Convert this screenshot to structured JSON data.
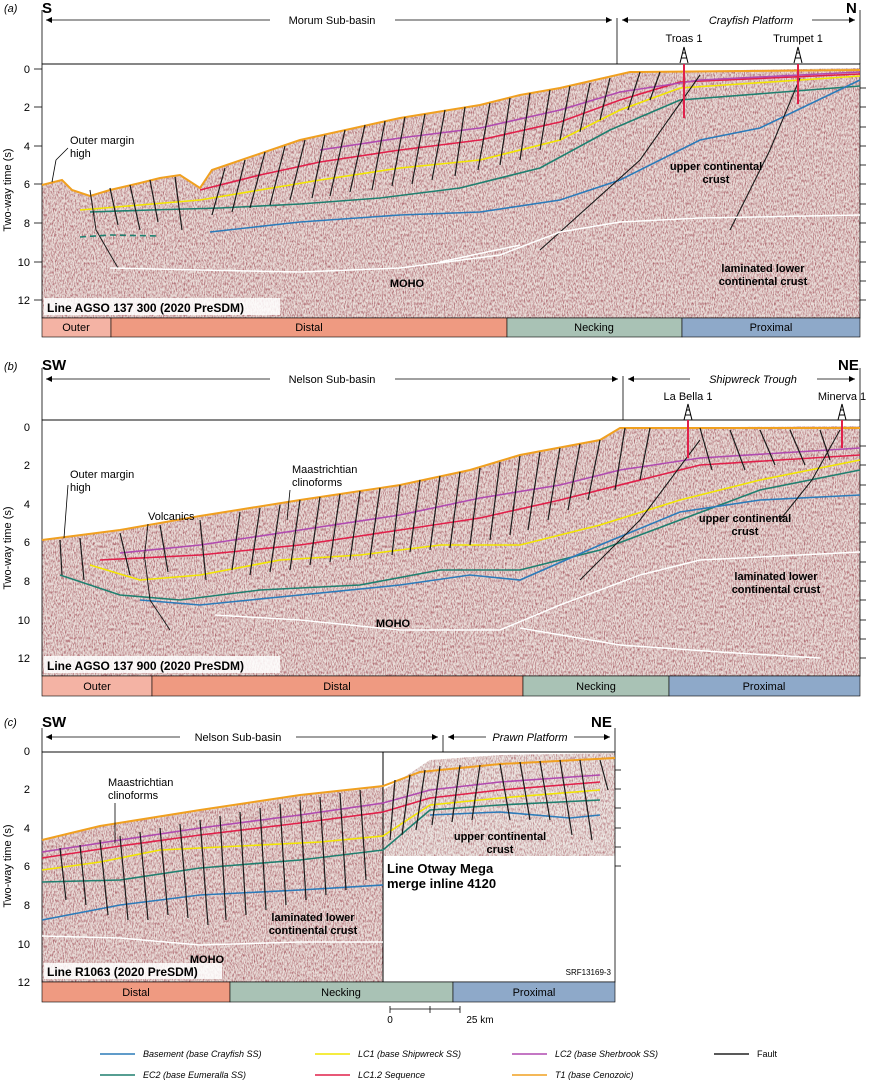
{
  "figure_id": "SRF13169-3",
  "axis": {
    "ylabel": "Two-way time (s)",
    "ticks": [
      "0",
      "2",
      "4",
      "6",
      "8",
      "10",
      "12"
    ]
  },
  "legend": [
    {
      "label": "Basement (base Crayfish SS)",
      "color": "#2b7bb9",
      "italic": true
    },
    {
      "label": "EC2 (base Eumeralla SS)",
      "color": "#1f7f6f",
      "italic": true
    },
    {
      "label": "LC1 (base Shipwreck SS)",
      "color": "#f2e600",
      "italic": true
    },
    {
      "label": "LC1.2 Sequence",
      "color": "#e0204a",
      "italic": true
    },
    {
      "label": "LC2 (base Sherbrook SS)",
      "color": "#b04ab0",
      "italic": true
    },
    {
      "label": "T1 (base Cenozoic)",
      "color": "#f0a020",
      "italic": true
    },
    {
      "label": "Fault",
      "color": "#222222",
      "italic": false
    }
  ],
  "scale_bar": {
    "zero": "0",
    "length": "25 km"
  },
  "panels": [
    {
      "letter": "(a)",
      "left_dir": "S",
      "right_dir": "N",
      "basin_left": "Morum Sub-basin",
      "basin_right": "Crayfish Platform",
      "wells": [
        "Troas 1",
        "Trumpet 1"
      ],
      "line_title": "Line AGSO 137 300 (2020 PreSDM)",
      "annotations": {
        "outer_margin_high_1": "Outer margin",
        "outer_margin_high_2": "high",
        "upper_crust_1": "upper continental",
        "upper_crust_2": "crust",
        "lower_crust_1": "laminated lower",
        "lower_crust_2": "continental crust",
        "moho": "MOHO"
      },
      "zones": [
        "Outer",
        "Distal",
        "Necking",
        "Proximal"
      ]
    },
    {
      "letter": "(b)",
      "left_dir": "SW",
      "right_dir": "NE",
      "basin_left": "Nelson Sub-basin",
      "basin_right": "Shipwreck Trough",
      "wells": [
        "La Bella 1",
        "Minerva 1"
      ],
      "line_title": "Line AGSO 137 900 (2020 PreSDM)",
      "annotations": {
        "outer_margin_high_1": "Outer margin",
        "outer_margin_high_2": "high",
        "volcanics": "Volcanics",
        "clinoforms_1": "Maastrichtian",
        "clinoforms_2": "clinoforms",
        "upper_crust_1": "upper continental",
        "upper_crust_2": "crust",
        "lower_crust_1": "laminated lower",
        "lower_crust_2": "continental crust",
        "moho": "MOHO"
      },
      "zones": [
        "Outer",
        "Distal",
        "Necking",
        "Proximal"
      ]
    },
    {
      "letter": "(c)",
      "left_dir": "SW",
      "right_dir": "NE",
      "basin_left": "Nelson Sub-basin",
      "basin_right": "Prawn Platform",
      "line_title": "Line R1063 (2020 PreSDM)",
      "merge_1": "Line Otway Mega",
      "merge_2": "merge inline 4120",
      "annotations": {
        "clinoforms_1": "Maastrichtian",
        "clinoforms_2": "clinoforms",
        "upper_crust_1": "upper continental",
        "upper_crust_2": "crust",
        "lower_crust_1": "laminated lower",
        "lower_crust_2": "continental crust",
        "moho": "MOHO"
      },
      "zones": [
        "Distal",
        "Necking",
        "Proximal"
      ]
    }
  ]
}
